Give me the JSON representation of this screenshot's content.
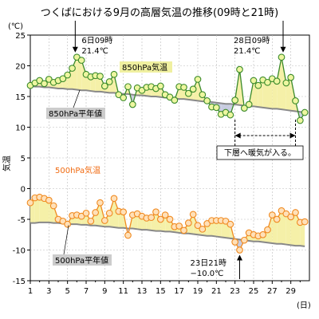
{
  "chart_data": {
    "type": "line",
    "title": "つくばにおける9月の高層気温の推移(09時と21時)",
    "ylabel": "気温",
    "yunit": "(℃)",
    "xunit": "(日)",
    "ylim": [
      -15,
      25
    ],
    "yticks": [
      25,
      20,
      15,
      10,
      5,
      0,
      -5,
      -10,
      -15
    ],
    "xticks": [
      "1",
      "3",
      "5",
      "7",
      "9",
      "11",
      "13",
      "15",
      "17",
      "19",
      "21",
      "23",
      "25",
      "27",
      "29"
    ],
    "x": [
      1,
      1.5,
      2,
      2.5,
      3,
      3.5,
      4,
      4.5,
      5,
      5.5,
      6,
      6.5,
      7,
      7.5,
      8,
      8.5,
      9,
      9.5,
      10,
      10.5,
      11,
      11.5,
      12,
      12.5,
      13,
      13.5,
      14,
      14.5,
      15,
      15.5,
      16,
      16.5,
      17,
      17.5,
      18,
      18.5,
      19,
      19.5,
      20,
      20.5,
      21,
      21.5,
      22,
      22.5,
      23,
      23.5,
      24,
      24.5,
      25,
      25.5,
      26,
      26.5,
      27,
      27.5,
      28,
      28.5,
      29,
      29.5,
      30,
      30.5
    ],
    "series": [
      {
        "name": "850hPa気温",
        "color": "#3a8a2a",
        "label_bg": "#f0f0a0",
        "values": [
          16.8,
          17.2,
          17.6,
          17.1,
          17.8,
          17.3,
          17.6,
          17.9,
          18.5,
          19.6,
          21.4,
          20.9,
          18.6,
          18.2,
          18.4,
          18.3,
          16.7,
          17.4,
          18.6,
          15.3,
          14.8,
          16.6,
          13.7,
          16.4,
          16.0,
          16.5,
          16.6,
          16.3,
          16.7,
          15.3,
          14.9,
          14.4,
          16.6,
          16.5,
          15.5,
          16.2,
          17.8,
          15.3,
          14.3,
          13.3,
          13.2,
          12.1,
          12.4,
          12.0,
          14.4,
          19.4,
          13.1,
          13.7,
          17.6,
          16.8,
          17.7,
          17.3,
          17.9,
          17.5,
          21.4,
          17.2,
          18.1,
          14.3,
          11.1,
          12.4
        ]
      },
      {
        "name": "850hPa平年値",
        "color": "#888888",
        "label_bg": "#cccccc",
        "values": [
          16.7,
          16.6,
          16.6,
          16.5,
          16.5,
          16.4,
          16.3,
          16.3,
          16.2,
          16.2,
          16.1,
          16.0,
          16.0,
          15.9,
          15.8,
          15.8,
          15.7,
          15.6,
          15.6,
          15.5,
          15.4,
          15.4,
          15.3,
          15.2,
          15.2,
          15.1,
          15.0,
          15.0,
          14.9,
          14.8,
          14.8,
          14.7,
          14.6,
          14.6,
          14.5,
          14.4,
          14.3,
          14.2,
          14.2,
          14.1,
          14.0,
          13.9,
          13.8,
          13.8,
          13.7,
          13.6,
          13.5,
          13.4,
          13.4,
          13.3,
          13.2,
          13.1,
          13.0,
          13.0,
          12.9,
          12.8,
          12.7,
          12.6,
          12.5,
          12.4
        ]
      },
      {
        "name": "500hPa気温",
        "color": "#f08a20",
        "label_bg": "#ffffff",
        "label_color": "#f06a10",
        "values": [
          -2.3,
          -1.5,
          -1.4,
          -1.6,
          -1.9,
          -2.8,
          -5.0,
          -5.3,
          -5.8,
          -4.4,
          -4.3,
          -4.5,
          -4.0,
          -5.3,
          -3.9,
          -2.3,
          -5.2,
          -4.0,
          -1.6,
          -3.7,
          -3.8,
          -7.6,
          -4.3,
          -4.1,
          -4.5,
          -4.8,
          -4.7,
          -3.8,
          -5.0,
          -4.3,
          -5.0,
          -6.2,
          -6.1,
          -6.8,
          -5.6,
          -4.2,
          -6.0,
          -6.6,
          -5.7,
          -5.2,
          -5.2,
          -5.2,
          -5.3,
          -5.8,
          -8.7,
          -10.0,
          -8.4,
          -7.2,
          -7.5,
          -7.7,
          -7.5,
          -6.7,
          -4.3,
          -5.0,
          -3.6,
          -4.1,
          -4.6,
          -3.9,
          -5.5,
          -5.4
        ]
      },
      {
        "name": "500hPa平年値",
        "color": "#888888",
        "label_bg": "#cccccc",
        "values": [
          -5.6,
          -5.6,
          -5.5,
          -5.5,
          -5.5,
          -5.6,
          -5.6,
          -5.7,
          -5.8,
          -5.8,
          -5.8,
          -5.9,
          -5.9,
          -6.0,
          -6.0,
          -6.1,
          -6.2,
          -6.2,
          -6.3,
          -6.4,
          -6.4,
          -6.5,
          -6.5,
          -6.6,
          -6.7,
          -6.7,
          -6.8,
          -6.9,
          -6.9,
          -7.0,
          -7.0,
          -7.1,
          -7.2,
          -7.3,
          -7.3,
          -7.4,
          -7.5,
          -7.6,
          -7.7,
          -7.7,
          -7.8,
          -7.9,
          -8.0,
          -8.1,
          -8.2,
          -8.3,
          -8.4,
          -8.5,
          -8.6,
          -8.6,
          -8.7,
          -8.8,
          -8.9,
          -9.0,
          -9.0,
          -9.1,
          -9.2,
          -9.3,
          -9.3,
          -9.4
        ]
      }
    ],
    "annotations": {
      "peak1": {
        "text1": "6日09時",
        "text2": "21.4℃",
        "x": 6,
        "y": 21.4
      },
      "peak2": {
        "text1": "28日09時",
        "text2": "21.4℃",
        "x": 28,
        "y": 21.4
      },
      "low": {
        "text1": "23日21時",
        "text2": "−10.0℃",
        "x": 23.5,
        "y": -10.0
      },
      "range": {
        "x_start": 23,
        "x_end": 29.5,
        "note": "下層へ暖気が入る。"
      }
    }
  }
}
